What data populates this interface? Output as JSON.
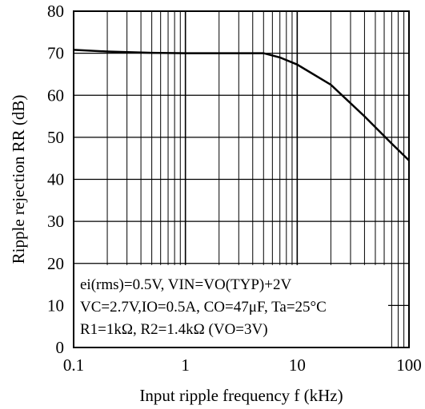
{
  "chart_data": {
    "type": "line",
    "x_scale": "log",
    "grid": true,
    "xlim": [
      0.1,
      100
    ],
    "ylim": [
      0,
      80
    ],
    "x_ticks": [
      "0.1",
      "1",
      "10",
      "100"
    ],
    "y_ticks": [
      "0",
      "10",
      "20",
      "30",
      "40",
      "50",
      "60",
      "70",
      "80"
    ],
    "xlabel": "Input ripple frequency f (kHz)",
    "ylabel": "Ripple rejection RR (dB)",
    "series": [
      {
        "x": [
          0.1,
          0.2,
          0.5,
          1,
          2,
          5,
          7,
          10,
          20,
          40,
          70,
          100
        ],
        "y": [
          70.8,
          70.4,
          70.1,
          70.0,
          70.0,
          70.0,
          69.0,
          67.3,
          62.5,
          55.0,
          48.5,
          44.5
        ]
      }
    ],
    "annotations": [
      "ei(rms)=0.5V, VIN=VO(TYP)+2V",
      "VC=2.7V,IO=0.5A, CO=47μF, Ta=25°C",
      "R1=1kΩ, R2=1.4kΩ (VO=3V)"
    ]
  },
  "colors": {
    "line": "#000000",
    "grid": "#000000",
    "background": "#ffffff"
  }
}
